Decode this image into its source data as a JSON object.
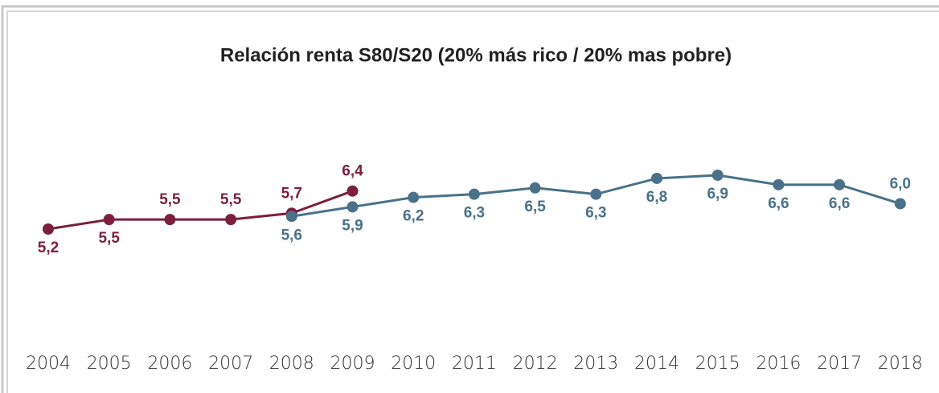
{
  "chart_data": {
    "type": "line",
    "title": "Relación renta S80/S20 (20% más rico / 20% mas pobre)",
    "categories": [
      "2004",
      "2005",
      "2006",
      "2007",
      "2008",
      "2009",
      "2010",
      "2011",
      "2012",
      "2013",
      "2014",
      "2015",
      "2016",
      "2017",
      "2018"
    ],
    "series": [
      {
        "color": "#7b1f3f",
        "values": [
          5.2,
          5.5,
          5.5,
          5.5,
          5.7,
          6.4,
          null,
          null,
          null,
          null,
          null,
          null,
          null,
          null,
          null
        ],
        "value_labels": [
          "5,2",
          "5,5",
          "5,5",
          "5,5",
          "5,7",
          "6,4",
          null,
          null,
          null,
          null,
          null,
          null,
          null,
          null,
          null
        ]
      },
      {
        "color": "#4a7189",
        "values": [
          null,
          null,
          null,
          null,
          5.6,
          5.9,
          6.2,
          6.3,
          6.5,
          6.3,
          6.8,
          6.9,
          6.6,
          6.6,
          6.0
        ],
        "value_labels": [
          null,
          null,
          null,
          null,
          "5,6",
          "5,9",
          "6,2",
          "6,3",
          "6,5",
          "6,3",
          "6,8",
          "6,9",
          "6,6",
          "6,6",
          "6,0"
        ]
      }
    ]
  }
}
